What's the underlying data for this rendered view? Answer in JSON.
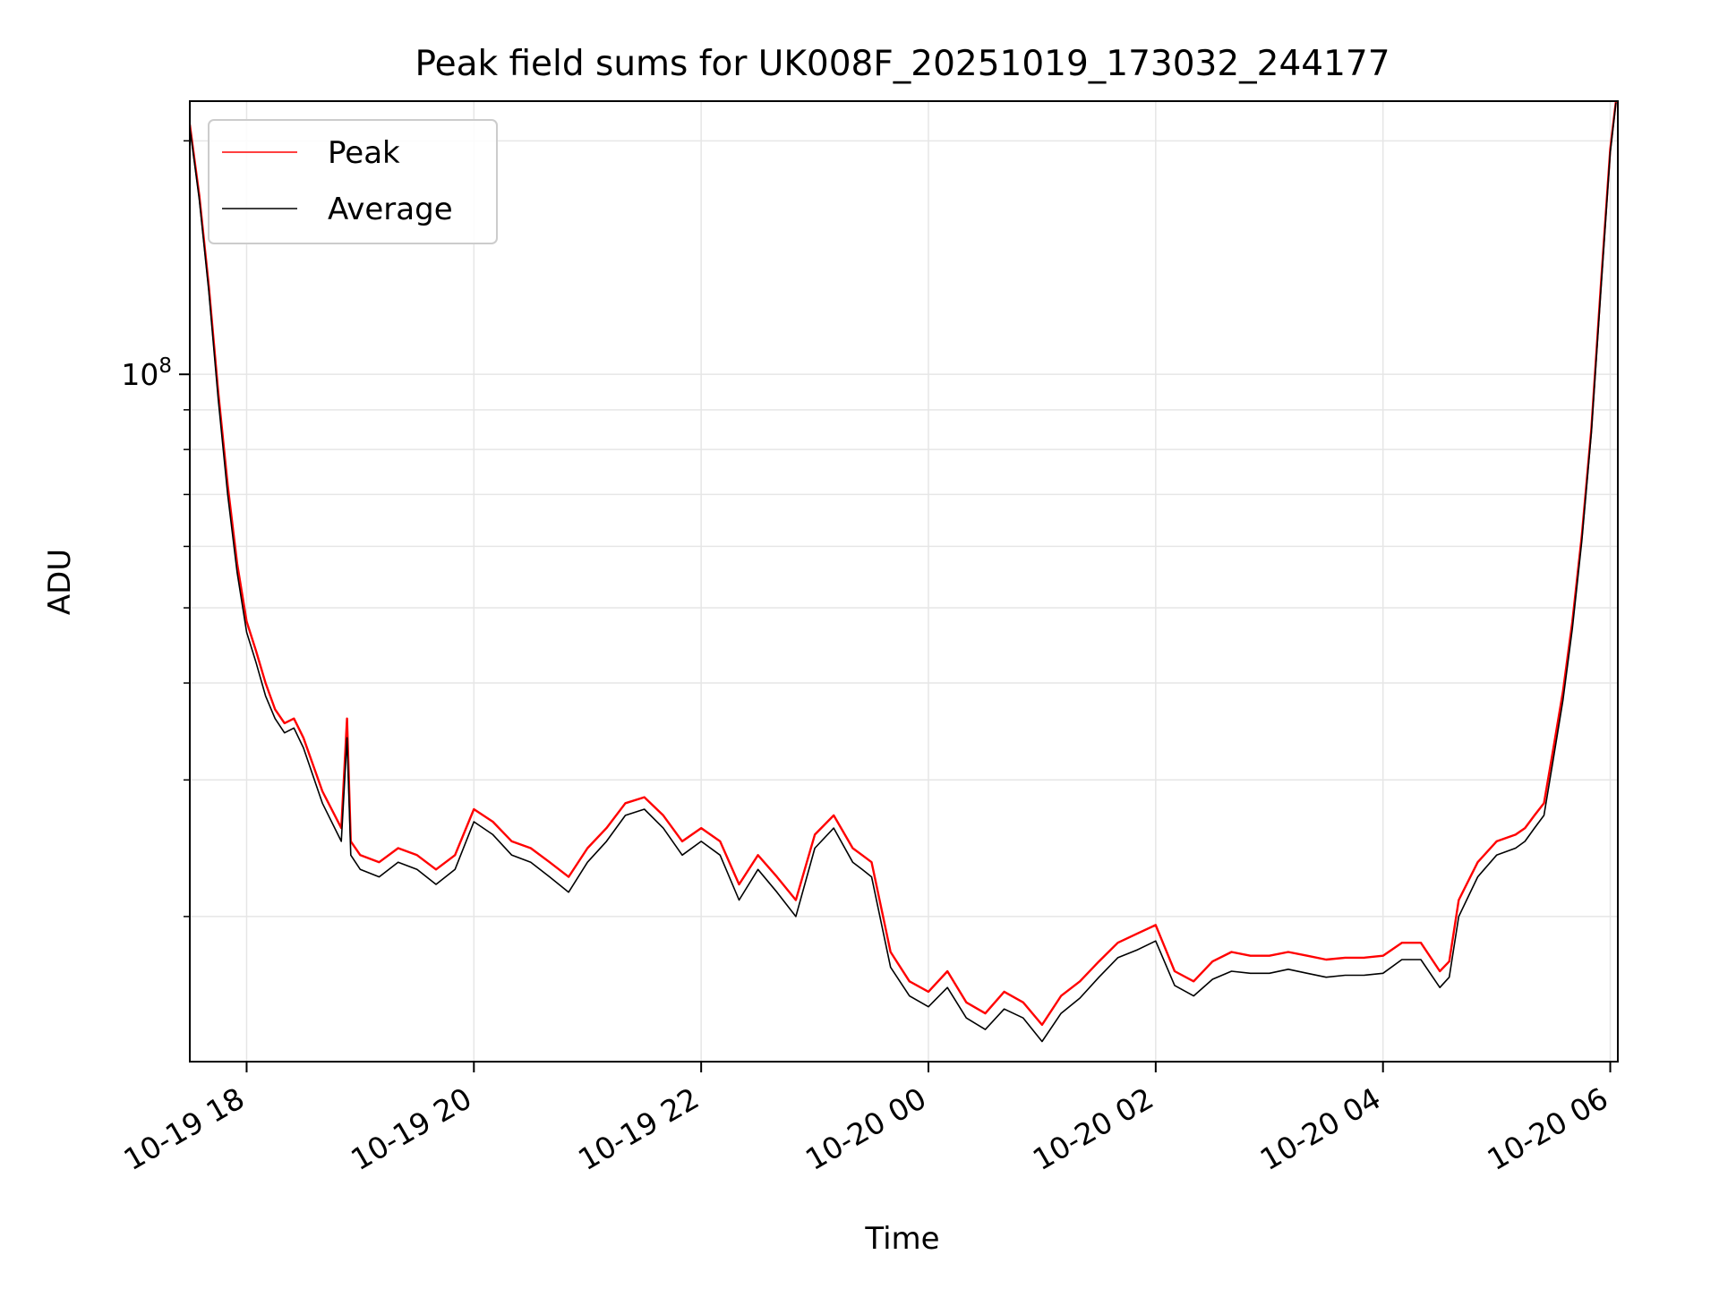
{
  "chart_data": {
    "type": "line",
    "title": "Peak field sums for UK008F_20251019_173032_244177",
    "xlabel": "Time",
    "ylabel": "ADU",
    "y_scale": "log",
    "ylim": [
      13000000,
      225000000
    ],
    "xlim": [
      "2025-10-19 17:30",
      "2025-10-20 06:04"
    ],
    "grid": true,
    "legend_location": "upper left",
    "x_tick_labels": [
      "10-19 18",
      "10-19 20",
      "10-19 22",
      "10-20 00",
      "10-20 02",
      "10-20 04",
      "10-20 06"
    ],
    "x_ticks": [
      "2025-10-19 18:00",
      "2025-10-19 20:00",
      "2025-10-19 22:00",
      "2025-10-20 00:00",
      "2025-10-20 02:00",
      "2025-10-20 04:00",
      "2025-10-20 06:00"
    ],
    "y_major_tick_label": "10^8",
    "y_major_tick_value": 100000000,
    "x": [
      "2025-10-19 17:30",
      "2025-10-19 17:35",
      "2025-10-19 17:40",
      "2025-10-19 17:45",
      "2025-10-19 17:50",
      "2025-10-19 17:55",
      "2025-10-19 18:00",
      "2025-10-19 18:05",
      "2025-10-19 18:10",
      "2025-10-19 18:15",
      "2025-10-19 18:20",
      "2025-10-19 18:25",
      "2025-10-19 18:30",
      "2025-10-19 18:40",
      "2025-10-19 18:50",
      "2025-10-19 18:53",
      "2025-10-19 18:55",
      "2025-10-19 19:00",
      "2025-10-19 19:10",
      "2025-10-19 19:20",
      "2025-10-19 19:30",
      "2025-10-19 19:40",
      "2025-10-19 19:50",
      "2025-10-19 20:00",
      "2025-10-19 20:10",
      "2025-10-19 20:20",
      "2025-10-19 20:30",
      "2025-10-19 20:40",
      "2025-10-19 20:50",
      "2025-10-19 21:00",
      "2025-10-19 21:10",
      "2025-10-19 21:20",
      "2025-10-19 21:30",
      "2025-10-19 21:40",
      "2025-10-19 21:50",
      "2025-10-19 22:00",
      "2025-10-19 22:10",
      "2025-10-19 22:20",
      "2025-10-19 22:30",
      "2025-10-19 22:40",
      "2025-10-19 22:50",
      "2025-10-19 23:00",
      "2025-10-19 23:10",
      "2025-10-19 23:20",
      "2025-10-19 23:25",
      "2025-10-19 23:30",
      "2025-10-19 23:40",
      "2025-10-19 23:50",
      "2025-10-20 00:00",
      "2025-10-20 00:10",
      "2025-10-20 00:20",
      "2025-10-20 00:30",
      "2025-10-20 00:40",
      "2025-10-20 00:50",
      "2025-10-20 01:00",
      "2025-10-20 01:10",
      "2025-10-20 01:20",
      "2025-10-20 01:30",
      "2025-10-20 01:40",
      "2025-10-20 01:50",
      "2025-10-20 02:00",
      "2025-10-20 02:10",
      "2025-10-20 02:20",
      "2025-10-20 02:30",
      "2025-10-20 02:40",
      "2025-10-20 02:50",
      "2025-10-20 03:00",
      "2025-10-20 03:10",
      "2025-10-20 03:20",
      "2025-10-20 03:30",
      "2025-10-20 03:40",
      "2025-10-20 03:50",
      "2025-10-20 04:00",
      "2025-10-20 04:10",
      "2025-10-20 04:20",
      "2025-10-20 04:30",
      "2025-10-20 04:35",
      "2025-10-20 04:40",
      "2025-10-20 04:50",
      "2025-10-20 05:00",
      "2025-10-20 05:10",
      "2025-10-20 05:15",
      "2025-10-20 05:20",
      "2025-10-20 05:25",
      "2025-10-20 05:30",
      "2025-10-20 05:35",
      "2025-10-20 05:40",
      "2025-10-20 05:45",
      "2025-10-20 05:50",
      "2025-10-20 05:55",
      "2025-10-20 06:00",
      "2025-10-20 06:03"
    ],
    "series": [
      {
        "name": "Peak",
        "color": "#ff0000",
        "values": [
          210000000,
          170000000,
          130000000,
          95000000,
          72000000,
          57000000,
          48000000,
          44000000,
          40000000,
          37000000,
          35500000,
          36000000,
          34000000,
          29000000,
          26000000,
          36000000,
          25000000,
          24000000,
          23500000,
          24500000,
          24000000,
          23000000,
          24000000,
          27500000,
          26500000,
          25000000,
          24500000,
          23500000,
          22500000,
          24500000,
          26000000,
          28000000,
          28500000,
          27000000,
          25000000,
          26000000,
          25000000,
          22000000,
          24000000,
          22500000,
          21000000,
          25500000,
          27000000,
          24500000,
          24000000,
          23500000,
          18000000,
          16500000,
          16000000,
          17000000,
          15500000,
          15000000,
          16000000,
          15500000,
          14500000,
          15800000,
          16500000,
          17500000,
          18500000,
          19000000,
          19500000,
          17000000,
          16500000,
          17500000,
          18000000,
          17800000,
          17800000,
          18000000,
          17800000,
          17600000,
          17700000,
          17700000,
          17800000,
          18500000,
          18500000,
          17000000,
          17500000,
          21000000,
          23500000,
          25000000,
          25500000,
          26000000,
          27000000,
          28000000,
          33000000,
          39000000,
          48000000,
          62000000,
          85000000,
          130000000,
          195000000,
          225000000
        ]
      },
      {
        "name": "Average",
        "color": "#000000",
        "values": [
          208000000,
          168000000,
          128000000,
          93000000,
          70000000,
          55500000,
          46500000,
          42500000,
          38500000,
          36000000,
          34500000,
          35000000,
          33000000,
          28000000,
          25000000,
          34000000,
          24000000,
          23000000,
          22500000,
          23500000,
          23000000,
          22000000,
          23000000,
          26500000,
          25500000,
          24000000,
          23500000,
          22500000,
          21500000,
          23500000,
          25000000,
          27000000,
          27500000,
          26000000,
          24000000,
          25000000,
          24000000,
          21000000,
          23000000,
          21500000,
          20000000,
          24500000,
          26000000,
          23500000,
          23000000,
          22500000,
          17200000,
          15800000,
          15300000,
          16200000,
          14800000,
          14300000,
          15200000,
          14800000,
          13800000,
          15000000,
          15700000,
          16700000,
          17700000,
          18100000,
          18600000,
          16300000,
          15800000,
          16600000,
          17000000,
          16900000,
          16900000,
          17100000,
          16900000,
          16700000,
          16800000,
          16800000,
          16900000,
          17600000,
          17600000,
          16200000,
          16700000,
          20000000,
          22500000,
          24000000,
          24500000,
          25000000,
          26000000,
          27000000,
          32000000,
          38000000,
          47000000,
          61000000,
          84000000,
          128000000,
          193000000,
          224000000
        ]
      }
    ]
  }
}
